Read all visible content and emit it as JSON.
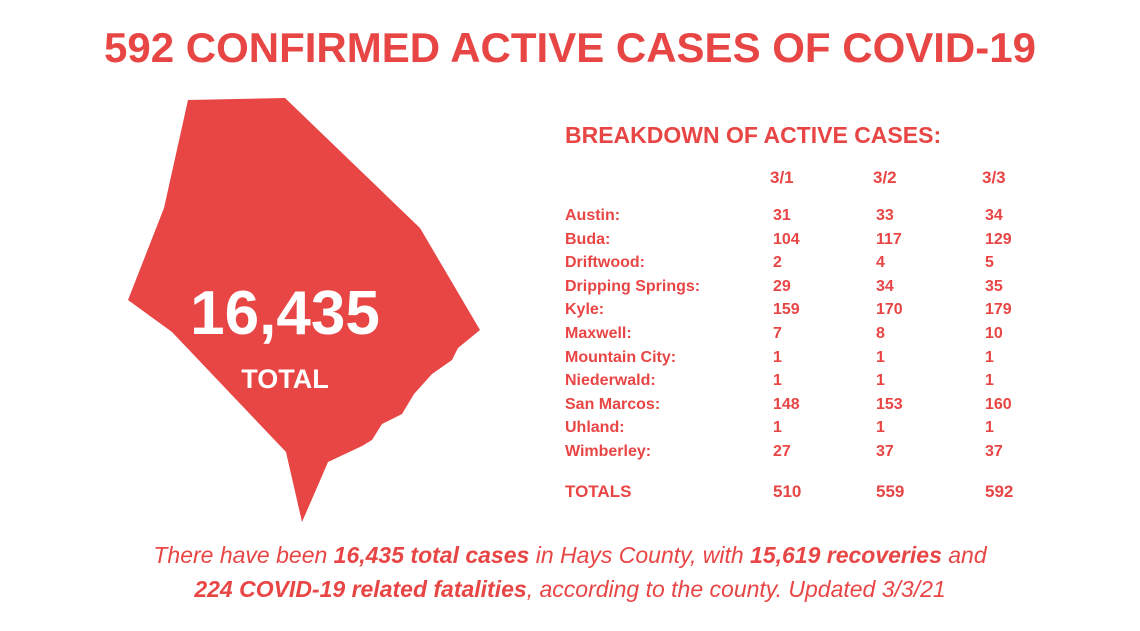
{
  "title": "592 CONFIRMED ACTIVE CASES OF COVID-19",
  "map": {
    "total": "16,435",
    "label": "TOTAL"
  },
  "table": {
    "title": "BREAKDOWN OF ACTIVE CASES:",
    "columns": [
      "3/1",
      "3/2",
      "3/3"
    ],
    "rows": [
      [
        "Austin:",
        31,
        33,
        34
      ],
      [
        "Buda:",
        104,
        117,
        129
      ],
      [
        "Driftwood:",
        2,
        4,
        5
      ],
      [
        "Dripping Springs:",
        29,
        34,
        35
      ],
      [
        "Kyle:",
        159,
        170,
        179
      ],
      [
        "Maxwell:",
        7,
        8,
        10
      ],
      [
        "Mountain City:",
        1,
        1,
        1
      ],
      [
        "Niederwald:",
        1,
        1,
        1
      ],
      [
        "San Marcos:",
        148,
        153,
        160
      ],
      [
        "Uhland:",
        1,
        1,
        1
      ],
      [
        "Wimberley:",
        27,
        37,
        37
      ]
    ],
    "totals": [
      "TOTALS",
      510,
      559,
      592
    ]
  },
  "footer": {
    "line1": [
      "There have been ",
      "16,435 total cases",
      " in Hays County, with ",
      "15,619 recoveries",
      " and"
    ],
    "line2": [
      "224 COVID-19 related fatalities",
      ", according to the county. Updated 3/3/21"
    ]
  }
}
